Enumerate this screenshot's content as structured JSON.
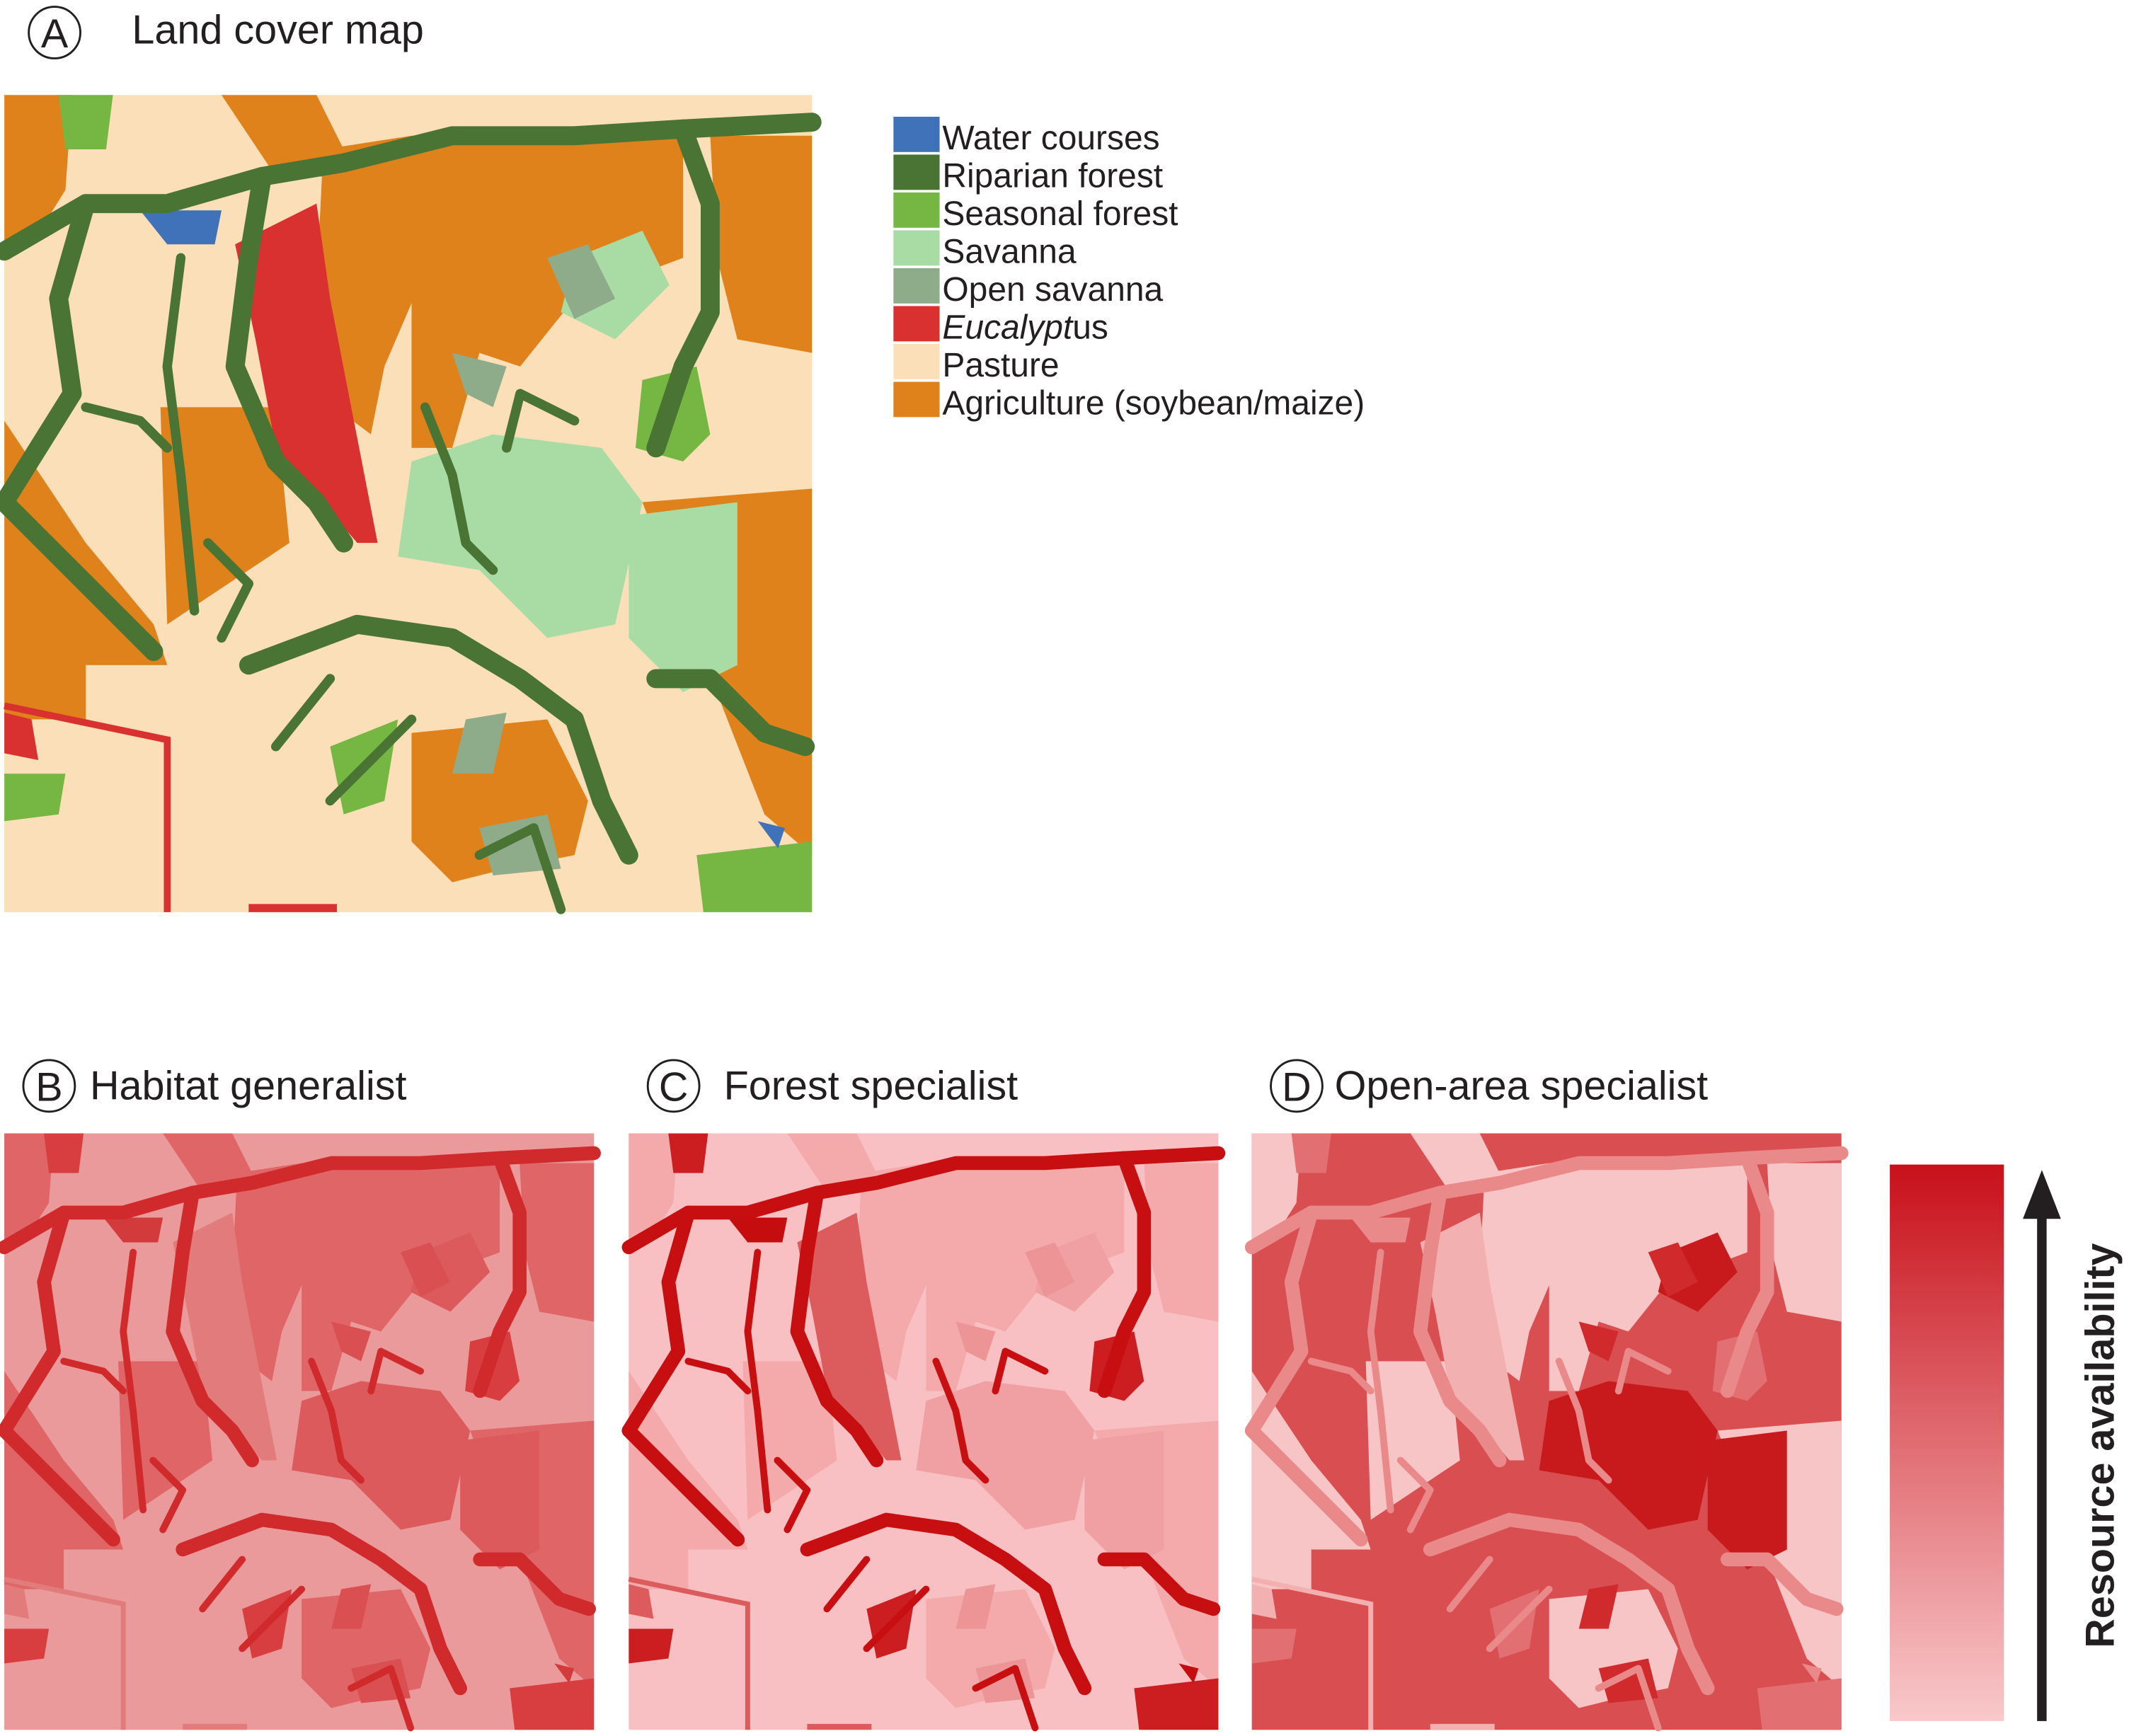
{
  "panels": [
    {
      "letter": "A",
      "title": "Land cover map"
    },
    {
      "letter": "B",
      "title": "Habitat generalist"
    },
    {
      "letter": "C",
      "title": "Forest specialist"
    },
    {
      "letter": "D",
      "title": "Open-area specialist"
    }
  ],
  "legend": {
    "items": [
      {
        "label": "Water courses",
        "color": "#3f72b8"
      },
      {
        "label": "Riparian forest",
        "color": "#4a7433"
      },
      {
        "label": "Seasonal forest",
        "color": "#76b743"
      },
      {
        "label": "Savanna",
        "color": "#a9dca5"
      },
      {
        "label": "Open savanna",
        "color": "#8fac8a"
      },
      {
        "label_italic": "Eucalypt",
        "label_rest": "us",
        "color": "#d93030"
      },
      {
        "label": "Pasture",
        "color": "#fbdfb8"
      },
      {
        "label": "Agriculture (soybean/maize)",
        "color": "#e0821c"
      }
    ]
  },
  "colorbar": {
    "label": "Resource availability"
  }
}
